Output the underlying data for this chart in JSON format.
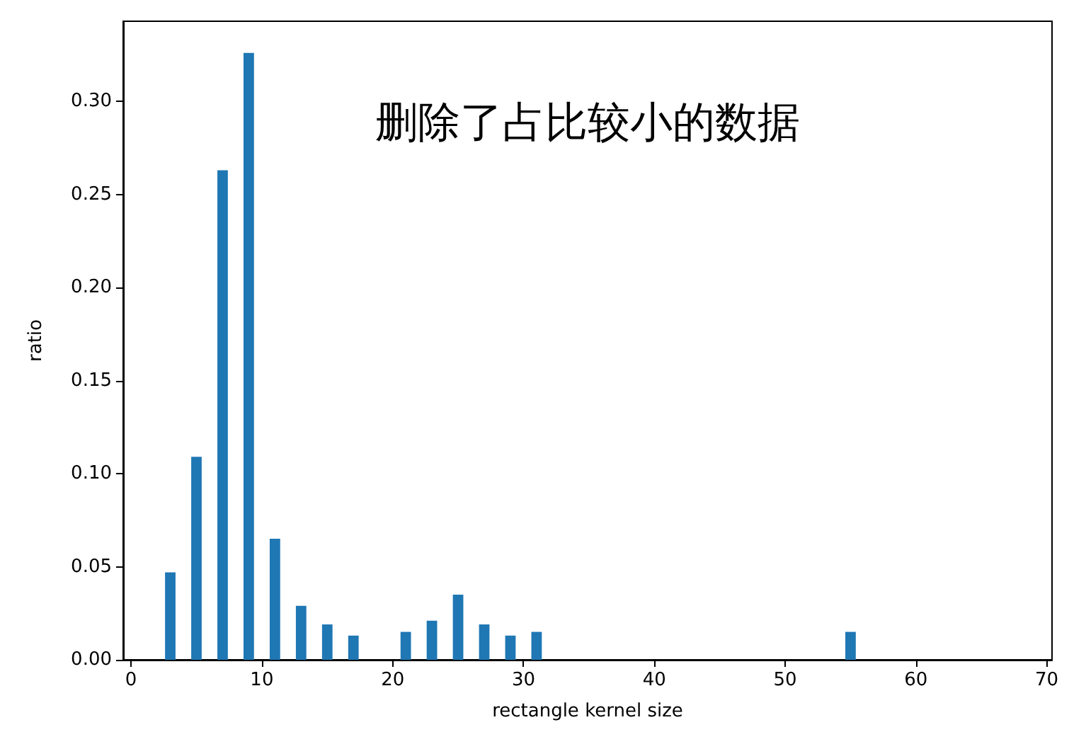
{
  "chart_data": {
    "type": "bar",
    "xlabel": "rectangle kernel size",
    "ylabel": "ratio",
    "x": [
      3,
      5,
      7,
      9,
      11,
      13,
      15,
      17,
      21,
      23,
      25,
      27,
      29,
      31,
      55
    ],
    "values": [
      0.047,
      0.109,
      0.263,
      0.326,
      0.065,
      0.029,
      0.019,
      0.013,
      0.015,
      0.021,
      0.035,
      0.019,
      0.013,
      0.015,
      0.015
    ],
    "color": "#1f77b4",
    "xlim": [
      -0.6,
      70.4
    ],
    "xticks": [
      0,
      10,
      20,
      30,
      40,
      50,
      60,
      70
    ],
    "ylim": [
      0,
      0.343
    ],
    "yticks": [
      {
        "value": 0,
        "label": "0.00"
      },
      {
        "value": 0.05,
        "label": "0.05"
      },
      {
        "value": 0.1,
        "label": "0.10"
      },
      {
        "value": 0.15,
        "label": "0.15"
      },
      {
        "value": 0.2,
        "label": "0.20"
      },
      {
        "value": 0.25,
        "label": "0.25"
      },
      {
        "value": 0.3,
        "label": "0.30"
      }
    ],
    "annotations": [
      "删除了占比较小的数据"
    ],
    "grid": false
  }
}
